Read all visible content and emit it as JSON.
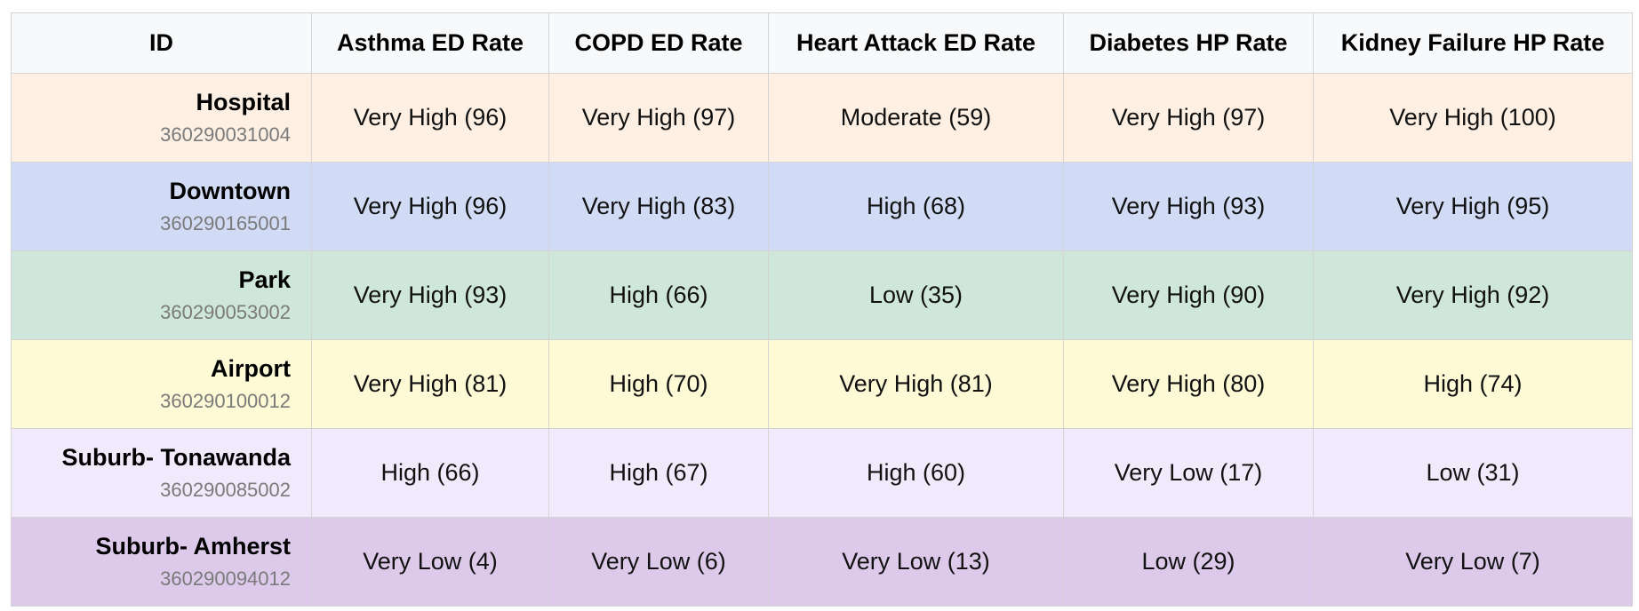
{
  "table": {
    "headers": [
      "ID",
      "Asthma ED Rate",
      "COPD ED Rate",
      "Heart Attack ED Rate",
      "Diabetes HP Rate",
      "Kidney Failure HP Rate"
    ],
    "rows": [
      {
        "name": "Hospital",
        "code": "360290031004",
        "color": "#fff0e3",
        "cells": [
          "Very High (96)",
          "Very High (97)",
          "Moderate (59)",
          "Very High (97)",
          "Very High (100)"
        ]
      },
      {
        "name": "Downtown",
        "code": "360290165001",
        "color": "#d1dbf5",
        "cells": [
          "Very High (96)",
          "Very High (83)",
          "High (68)",
          "Very High (93)",
          "Very High (95)"
        ]
      },
      {
        "name": "Park",
        "code": "360290053002",
        "color": "#cfe7db",
        "cells": [
          "Very High (93)",
          "High (66)",
          "Low (35)",
          "Very High (90)",
          "Very High (92)"
        ]
      },
      {
        "name": "Airport",
        "code": "360290100012",
        "color": "#fefad6",
        "cells": [
          "Very High (81)",
          "High (70)",
          "Very High (81)",
          "Very High (80)",
          "High (74)"
        ]
      },
      {
        "name": "Suburb- Tonawanda",
        "code": "360290085002",
        "color": "#f1eafd",
        "cells": [
          "High (66)",
          "High (67)",
          "High (60)",
          "Very Low (17)",
          "Low (31)"
        ]
      },
      {
        "name": "Suburb- Amherst",
        "code": "360290094012",
        "color": "#ddcaeb",
        "cells": [
          "Very Low (4)",
          "Very Low (6)",
          "Very Low (13)",
          "Low (29)",
          "Very Low (7)"
        ]
      }
    ]
  }
}
